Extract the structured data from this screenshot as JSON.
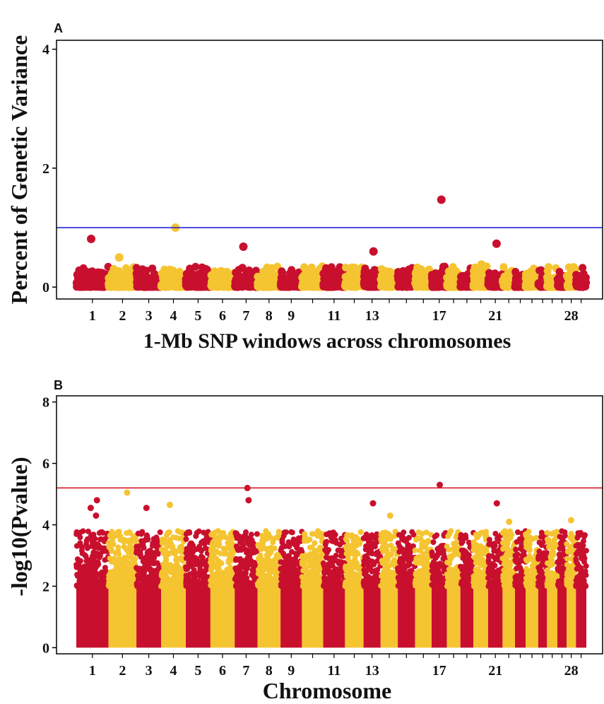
{
  "colors": {
    "odd_chromosome": "#c8102e",
    "even_chromosome": "#f5c431",
    "threshold_a": "#2727d8",
    "threshold_b": "#d81b2a",
    "axis": "#000000"
  },
  "chart_data": [
    {
      "panel": "A",
      "type": "scatter",
      "title": "",
      "xlabel": "1-Mb SNP windows across chromosomes",
      "ylabel": "Percent of Genetic Variance",
      "ylim": [
        -0.2,
        4.15
      ],
      "yticks": [
        "0",
        "2",
        "4"
      ],
      "xtick_labels": [
        "1",
        "2",
        "3",
        "4",
        "5",
        "6",
        "7",
        "8",
        "9",
        "11",
        "13",
        "17",
        "21",
        "28"
      ],
      "threshold": 1.0,
      "grid": false,
      "legend": "none",
      "chromosomes": [
        1,
        2,
        3,
        4,
        5,
        6,
        7,
        8,
        9,
        10,
        11,
        12,
        13,
        14,
        15,
        16,
        17,
        18,
        19,
        20,
        21,
        22,
        23,
        24,
        25,
        26,
        27,
        28,
        29
      ],
      "chromosome_sizes_mb": [
        158,
        137,
        121,
        121,
        121,
        119,
        112,
        113,
        105,
        104,
        107,
        91,
        84,
        84,
        85,
        81,
        75,
        66,
        64,
        72,
        71,
        61,
        52,
        62,
        43,
        51,
        45,
        46,
        51
      ],
      "typical_value_range": [
        0.0,
        0.3
      ],
      "highlighted_points": [
        {
          "chr": 1,
          "value": 0.81
        },
        {
          "chr": 2,
          "value": 0.5
        },
        {
          "chr": 4,
          "value": 1.0
        },
        {
          "chr": 7,
          "value": 0.68
        },
        {
          "chr": 13,
          "value": 0.6
        },
        {
          "chr": 17,
          "value": 1.47
        },
        {
          "chr": 21,
          "value": 0.73
        },
        {
          "chr": 20,
          "value": 0.38
        }
      ]
    },
    {
      "panel": "B",
      "type": "scatter",
      "title": "",
      "xlabel": "Chromosome",
      "ylabel": "-log10(Pvalue)",
      "ylim": [
        -0.2,
        8.2
      ],
      "yticks": [
        "0",
        "2",
        "4",
        "6",
        "8"
      ],
      "xtick_labels": [
        "1",
        "2",
        "3",
        "4",
        "5",
        "6",
        "7",
        "8",
        "9",
        "11",
        "13",
        "17",
        "21",
        "28"
      ],
      "threshold": 5.2,
      "grid": false,
      "legend": "none",
      "chromosomes": [
        1,
        2,
        3,
        4,
        5,
        6,
        7,
        8,
        9,
        10,
        11,
        12,
        13,
        14,
        15,
        16,
        17,
        18,
        19,
        20,
        21,
        22,
        23,
        24,
        25,
        26,
        27,
        28,
        29
      ],
      "chromosome_sizes_mb": [
        158,
        137,
        121,
        121,
        121,
        119,
        112,
        113,
        105,
        104,
        107,
        91,
        84,
        84,
        85,
        81,
        75,
        66,
        64,
        72,
        71,
        61,
        52,
        62,
        43,
        51,
        45,
        46,
        51
      ],
      "dense_band_top": 2.0,
      "typical_peak_range": [
        2.5,
        3.8
      ],
      "highlighted_points": [
        {
          "chr": 1,
          "value": 4.8
        },
        {
          "chr": 1,
          "value": 4.3
        },
        {
          "chr": 1,
          "value": 4.55
        },
        {
          "chr": 2,
          "value": 5.05
        },
        {
          "chr": 3,
          "value": 4.55
        },
        {
          "chr": 4,
          "value": 4.65
        },
        {
          "chr": 7,
          "value": 5.2
        },
        {
          "chr": 7,
          "value": 4.8
        },
        {
          "chr": 13,
          "value": 4.7
        },
        {
          "chr": 14,
          "value": 4.3
        },
        {
          "chr": 17,
          "value": 5.3
        },
        {
          "chr": 21,
          "value": 4.7
        },
        {
          "chr": 22,
          "value": 4.1
        },
        {
          "chr": 28,
          "value": 4.15
        }
      ]
    }
  ],
  "panels": {
    "a_label": "A",
    "b_label": "B"
  }
}
